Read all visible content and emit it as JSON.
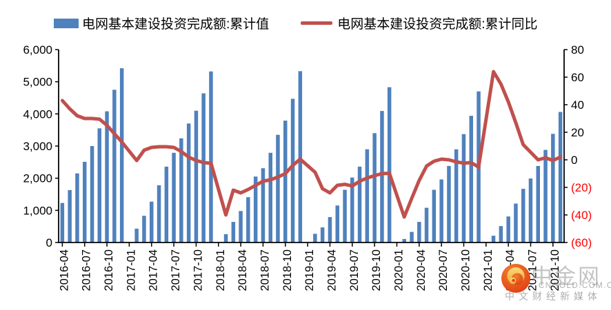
{
  "legend": {
    "bar_label": "电网基本建设投资完成额:累计值",
    "line_label": "电网基本建设投资完成额:累计同比"
  },
  "colors": {
    "bar": "#4F81BD",
    "line": "#C0504D",
    "axis": "#000000",
    "negative_tick": "#FF0000",
    "logo_red": "#DE3A12",
    "logo_orange": "#F2802D",
    "logo_gold": "#F7BE45"
  },
  "watermark": {
    "cn_name": "中金网",
    "domain": "CNGOLD.COM.CN",
    "tagline": "中文财经新媒体"
  },
  "chart_data": {
    "type": "bar+line",
    "title": "",
    "legend_position": "top",
    "grid": false,
    "left_axis": {
      "min": 0,
      "max": 6000,
      "step": 1000,
      "ticks": [
        "0",
        "1,000",
        "2,000",
        "3,000",
        "4,000",
        "5,000",
        "6,000"
      ]
    },
    "right_axis": {
      "min": -60,
      "max": 80,
      "step": 20,
      "ticks": [
        "80",
        "60",
        "40",
        "20",
        "0",
        "(20)",
        "(40)",
        "(60)"
      ]
    },
    "x_tick_labels": [
      "2016-04",
      "2016-07",
      "2016-10",
      "2017-01",
      "2017-04",
      "2017-07",
      "2017-10",
      "2018-01",
      "2018-04",
      "2018-07",
      "2018-10",
      "2019-01",
      "2019-04",
      "2019-07",
      "2019-10",
      "2020-01",
      "2020-04",
      "2020-07",
      "2020-10",
      "2021-01",
      "2021-04",
      "2021-07",
      "2021-10"
    ],
    "series": [
      {
        "month": "2016-04",
        "value": 1230,
        "yoy": 43
      },
      {
        "month": "2016-05",
        "value": 1630,
        "yoy": 37
      },
      {
        "month": "2016-06",
        "value": 2150,
        "yoy": 32
      },
      {
        "month": "2016-07",
        "value": 2510,
        "yoy": 30
      },
      {
        "month": "2016-08",
        "value": 3000,
        "yoy": 30
      },
      {
        "month": "2016-09",
        "value": 3550,
        "yoy": 29.5
      },
      {
        "month": "2016-10",
        "value": 4080,
        "yoy": 25
      },
      {
        "month": "2016-11",
        "value": 4750,
        "yoy": 19
      },
      {
        "month": "2016-12",
        "value": 5420,
        "yoy": 13
      },
      {
        "month": "2017-01",
        "value": null,
        "yoy": null
      },
      {
        "month": "2017-02",
        "value": 430,
        "yoy": -0.5
      },
      {
        "month": "2017-03",
        "value": 830,
        "yoy": 7
      },
      {
        "month": "2017-04",
        "value": 1270,
        "yoy": 9
      },
      {
        "month": "2017-05",
        "value": 1780,
        "yoy": 9.5
      },
      {
        "month": "2017-06",
        "value": 2360,
        "yoy": 9.5
      },
      {
        "month": "2017-07",
        "value": 2790,
        "yoy": 9
      },
      {
        "month": "2017-08",
        "value": 3240,
        "yoy": 6
      },
      {
        "month": "2017-09",
        "value": 3700,
        "yoy": 2
      },
      {
        "month": "2017-10",
        "value": 4100,
        "yoy": -0.5
      },
      {
        "month": "2017-11",
        "value": 4640,
        "yoy": -2
      },
      {
        "month": "2017-12",
        "value": 5320,
        "yoy": -2.5
      },
      {
        "month": "2018-01",
        "value": null,
        "yoy": null
      },
      {
        "month": "2018-02",
        "value": 260,
        "yoy": -40
      },
      {
        "month": "2018-03",
        "value": 640,
        "yoy": -22
      },
      {
        "month": "2018-04",
        "value": 980,
        "yoy": -24
      },
      {
        "month": "2018-05",
        "value": 1410,
        "yoy": -21.5
      },
      {
        "month": "2018-06",
        "value": 2050,
        "yoy": -18.5
      },
      {
        "month": "2018-07",
        "value": 2310,
        "yoy": -15.5
      },
      {
        "month": "2018-08",
        "value": 2790,
        "yoy": -14.5
      },
      {
        "month": "2018-09",
        "value": 3350,
        "yoy": -12.5
      },
      {
        "month": "2018-10",
        "value": 3790,
        "yoy": -10
      },
      {
        "month": "2018-11",
        "value": 4470,
        "yoy": -4
      },
      {
        "month": "2018-12",
        "value": 5330,
        "yoy": 0.5
      },
      {
        "month": "2019-01",
        "value": null,
        "yoy": null
      },
      {
        "month": "2019-02",
        "value": 270,
        "yoy": -9
      },
      {
        "month": "2019-03",
        "value": 470,
        "yoy": -21
      },
      {
        "month": "2019-04",
        "value": 790,
        "yoy": -24
      },
      {
        "month": "2019-05",
        "value": 1150,
        "yoy": -18.5
      },
      {
        "month": "2019-06",
        "value": 1640,
        "yoy": -17.8
      },
      {
        "month": "2019-07",
        "value": 2020,
        "yoy": -19
      },
      {
        "month": "2019-08",
        "value": 2360,
        "yoy": -15.5
      },
      {
        "month": "2019-09",
        "value": 2900,
        "yoy": -13.2
      },
      {
        "month": "2019-10",
        "value": 3400,
        "yoy": -11.5
      },
      {
        "month": "2019-11",
        "value": 4090,
        "yoy": -10
      },
      {
        "month": "2019-12",
        "value": 4830,
        "yoy": -9.8
      },
      {
        "month": "2020-01",
        "value": null,
        "yoy": null
      },
      {
        "month": "2020-02",
        "value": 110,
        "yoy": -41.5
      },
      {
        "month": "2020-03",
        "value": 330,
        "yoy": -28
      },
      {
        "month": "2020-04",
        "value": 640,
        "yoy": -15
      },
      {
        "month": "2020-05",
        "value": 1080,
        "yoy": -4.5
      },
      {
        "month": "2020-06",
        "value": 1640,
        "yoy": -1
      },
      {
        "month": "2020-07",
        "value": 1960,
        "yoy": 0.5
      },
      {
        "month": "2020-08",
        "value": 2380,
        "yoy": 0
      },
      {
        "month": "2020-09",
        "value": 2900,
        "yoy": -1.5
      },
      {
        "month": "2020-10",
        "value": 3370,
        "yoy": -2.4
      },
      {
        "month": "2020-11",
        "value": 3940,
        "yoy": -2
      },
      {
        "month": "2020-12",
        "value": 4700,
        "yoy": -5.3
      },
      {
        "month": "2021-01",
        "value": null,
        "yoy": null
      },
      {
        "month": "2021-02",
        "value": 210,
        "yoy": 64
      },
      {
        "month": "2021-03",
        "value": 510,
        "yoy": 55
      },
      {
        "month": "2021-04",
        "value": 810,
        "yoy": 42
      },
      {
        "month": "2021-05",
        "value": 1210,
        "yoy": 27
      },
      {
        "month": "2021-06",
        "value": 1670,
        "yoy": 11
      },
      {
        "month": "2021-07",
        "value": 1990,
        "yoy": 5.5
      },
      {
        "month": "2021-08",
        "value": 2380,
        "yoy": 0
      },
      {
        "month": "2021-09",
        "value": 2880,
        "yoy": 1.5
      },
      {
        "month": "2021-10",
        "value": 3380,
        "yoy": -0.5
      },
      {
        "month": "2021-11",
        "value": 4060,
        "yoy": 2
      }
    ]
  }
}
